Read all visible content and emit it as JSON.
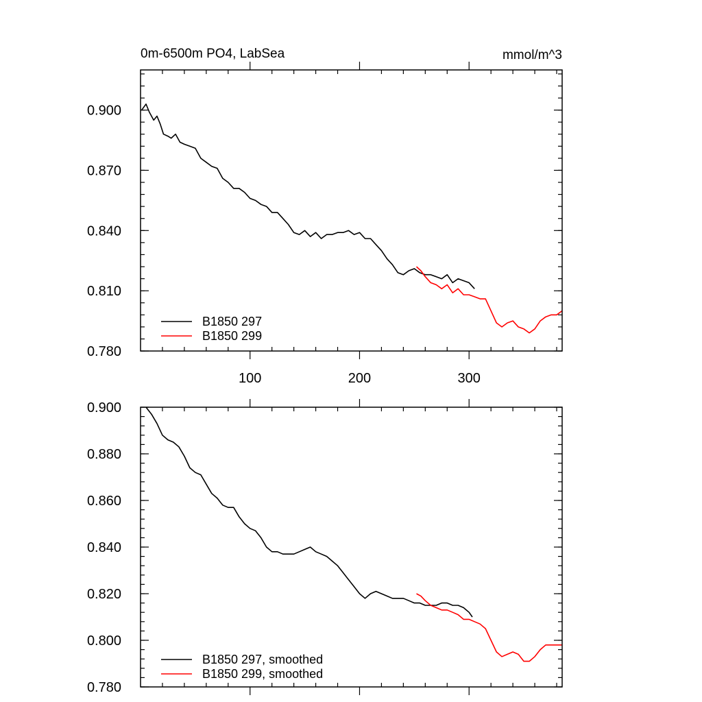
{
  "chart_data": [
    {
      "type": "line",
      "title": "0m-6500m PO4, LabSea",
      "units": "mmol/m^3",
      "xlim": [
        0,
        385
      ],
      "ylim": [
        0.78,
        0.92
      ],
      "xticks": [
        100,
        200,
        300
      ],
      "xtick_labels": [
        "100",
        "200",
        "300"
      ],
      "yticks": [
        0.78,
        0.81,
        0.84,
        0.87,
        0.9
      ],
      "ytick_labels": [
        "0.780",
        "0.810",
        "0.840",
        "0.870",
        "0.900"
      ],
      "legend_position": "bottom-left",
      "grid": false,
      "series": [
        {
          "name": "B1850 297",
          "color": "#000000",
          "x": [
            1,
            5,
            8,
            12,
            15,
            18,
            21,
            25,
            28,
            32,
            36,
            40,
            45,
            50,
            55,
            60,
            65,
            70,
            75,
            80,
            85,
            90,
            95,
            100,
            105,
            110,
            115,
            120,
            125,
            130,
            135,
            140,
            145,
            150,
            155,
            160,
            165,
            170,
            175,
            180,
            185,
            190,
            195,
            200,
            205,
            210,
            215,
            220,
            225,
            230,
            235,
            240,
            245,
            250,
            255,
            260,
            265,
            270,
            275,
            280,
            285,
            290,
            295,
            300,
            305
          ],
          "values": [
            0.9,
            0.903,
            0.899,
            0.895,
            0.897,
            0.893,
            0.888,
            0.887,
            0.886,
            0.888,
            0.884,
            0.883,
            0.882,
            0.881,
            0.876,
            0.874,
            0.872,
            0.871,
            0.866,
            0.864,
            0.861,
            0.861,
            0.859,
            0.856,
            0.855,
            0.853,
            0.852,
            0.849,
            0.849,
            0.846,
            0.843,
            0.839,
            0.838,
            0.84,
            0.837,
            0.839,
            0.836,
            0.838,
            0.838,
            0.839,
            0.839,
            0.84,
            0.838,
            0.839,
            0.836,
            0.836,
            0.833,
            0.83,
            0.826,
            0.823,
            0.819,
            0.818,
            0.82,
            0.821,
            0.819,
            0.818,
            0.818,
            0.817,
            0.816,
            0.818,
            0.814,
            0.816,
            0.815,
            0.814,
            0.811
          ]
        },
        {
          "name": "B1850 299",
          "color": "#ff0000",
          "x": [
            252,
            256,
            260,
            265,
            270,
            275,
            280,
            285,
            290,
            295,
            300,
            305,
            310,
            315,
            320,
            325,
            330,
            335,
            340,
            345,
            350,
            355,
            360,
            365,
            370,
            375,
            380,
            385
          ],
          "values": [
            0.822,
            0.82,
            0.817,
            0.814,
            0.813,
            0.811,
            0.813,
            0.809,
            0.811,
            0.808,
            0.808,
            0.807,
            0.806,
            0.806,
            0.8,
            0.794,
            0.792,
            0.794,
            0.795,
            0.792,
            0.791,
            0.789,
            0.791,
            0.795,
            0.797,
            0.798,
            0.798,
            0.8
          ]
        }
      ]
    },
    {
      "type": "line",
      "title": "",
      "xlim": [
        0,
        385
      ],
      "ylim": [
        0.78,
        0.9
      ],
      "xticks": [
        100,
        200,
        300
      ],
      "xtick_labels": [],
      "yticks": [
        0.78,
        0.8,
        0.82,
        0.84,
        0.86,
        0.88,
        0.9
      ],
      "ytick_labels": [
        "0.780",
        "0.800",
        "0.820",
        "0.840",
        "0.860",
        "0.880",
        "0.900"
      ],
      "legend_position": "bottom-left",
      "grid": false,
      "series": [
        {
          "name": "B1850 297, smoothed",
          "color": "#000000",
          "x": [
            5,
            10,
            15,
            20,
            25,
            30,
            35,
            40,
            45,
            50,
            55,
            60,
            65,
            70,
            75,
            80,
            85,
            90,
            95,
            100,
            105,
            110,
            115,
            120,
            125,
            130,
            135,
            140,
            145,
            150,
            155,
            160,
            165,
            170,
            175,
            180,
            185,
            190,
            195,
            200,
            205,
            210,
            215,
            220,
            225,
            230,
            235,
            240,
            245,
            250,
            255,
            260,
            265,
            270,
            275,
            280,
            285,
            290,
            295,
            300,
            303
          ],
          "values": [
            0.9,
            0.897,
            0.893,
            0.888,
            0.886,
            0.885,
            0.883,
            0.879,
            0.874,
            0.872,
            0.871,
            0.867,
            0.863,
            0.861,
            0.858,
            0.857,
            0.857,
            0.853,
            0.85,
            0.848,
            0.847,
            0.844,
            0.84,
            0.838,
            0.838,
            0.837,
            0.837,
            0.837,
            0.838,
            0.839,
            0.84,
            0.838,
            0.837,
            0.836,
            0.834,
            0.832,
            0.829,
            0.826,
            0.823,
            0.82,
            0.818,
            0.82,
            0.821,
            0.82,
            0.819,
            0.818,
            0.818,
            0.818,
            0.817,
            0.816,
            0.816,
            0.815,
            0.815,
            0.815,
            0.816,
            0.816,
            0.815,
            0.815,
            0.814,
            0.812,
            0.81
          ]
        },
        {
          "name": "B1850 299, smoothed",
          "color": "#ff0000",
          "x": [
            252,
            256,
            260,
            265,
            270,
            275,
            280,
            285,
            290,
            295,
            300,
            305,
            310,
            315,
            320,
            325,
            330,
            335,
            340,
            345,
            350,
            355,
            360,
            365,
            370,
            375,
            380,
            385
          ],
          "values": [
            0.82,
            0.819,
            0.817,
            0.815,
            0.814,
            0.813,
            0.813,
            0.812,
            0.811,
            0.809,
            0.809,
            0.808,
            0.807,
            0.805,
            0.8,
            0.795,
            0.793,
            0.794,
            0.795,
            0.794,
            0.791,
            0.791,
            0.793,
            0.796,
            0.798,
            0.798,
            0.798,
            0.798
          ]
        }
      ]
    }
  ]
}
